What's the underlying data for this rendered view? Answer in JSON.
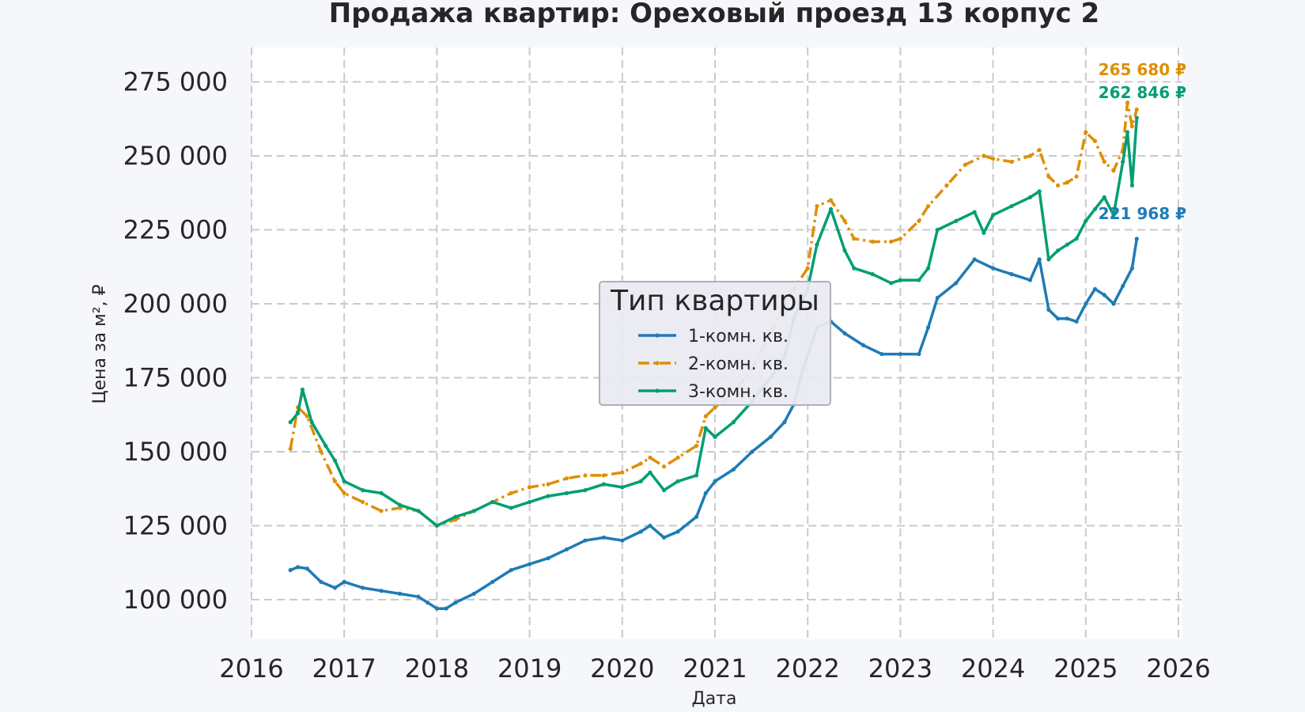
{
  "chart_data": {
    "type": "line",
    "title": "Продажа квартир: Ореховый проезд 13 корпус 2",
    "xlabel": "Дата",
    "ylabel": "Цена за м², ₽",
    "xlim": [
      2016,
      2026
    ],
    "ylim": [
      88000,
      287000
    ],
    "x_ticks": [
      2016,
      2017,
      2018,
      2019,
      2020,
      2021,
      2022,
      2023,
      2024,
      2025,
      2026
    ],
    "y_ticks": [
      100000,
      125000,
      150000,
      175000,
      200000,
      225000,
      250000,
      275000
    ],
    "y_tick_labels": [
      "100 000",
      "125 000",
      "150 000",
      "175 000",
      "200 000",
      "225 000",
      "250 000",
      "275 000"
    ],
    "grid": true,
    "legend": {
      "title": "Тип квартиры",
      "placement": "center"
    },
    "series": [
      {
        "name": "1-комн. кв.",
        "color": "#1f7bb5",
        "style": "solid-markers",
        "end_label": "221 968 ₽",
        "x": [
          2016.42,
          2016.5,
          2016.6,
          2016.75,
          2016.9,
          2017.0,
          2017.2,
          2017.4,
          2017.6,
          2017.8,
          2017.9,
          2018.0,
          2018.1,
          2018.2,
          2018.4,
          2018.6,
          2018.8,
          2019.0,
          2019.2,
          2019.4,
          2019.6,
          2019.8,
          2020.0,
          2020.2,
          2020.3,
          2020.45,
          2020.6,
          2020.8,
          2020.9,
          2021.0,
          2021.2,
          2021.4,
          2021.6,
          2021.75,
          2021.85,
          2021.95,
          2022.1,
          2022.25,
          2022.4,
          2022.6,
          2022.8,
          2023.0,
          2023.2,
          2023.3,
          2023.4,
          2023.6,
          2023.8,
          2024.0,
          2024.2,
          2024.4,
          2024.5,
          2024.6,
          2024.7,
          2024.8,
          2024.9,
          2025.0,
          2025.1,
          2025.2,
          2025.3,
          2025.4,
          2025.5,
          2025.55
        ],
        "y": [
          110000,
          111000,
          110500,
          106000,
          104000,
          106000,
          104000,
          103000,
          102000,
          101000,
          99000,
          97000,
          97000,
          99000,
          102000,
          106000,
          110000,
          112000,
          114000,
          117000,
          120000,
          121000,
          120000,
          123000,
          125000,
          121000,
          123000,
          128000,
          136000,
          140000,
          144000,
          150000,
          155000,
          160000,
          166000,
          178000,
          192000,
          194000,
          190000,
          186000,
          183000,
          183000,
          183000,
          192000,
          202000,
          207000,
          215000,
          212000,
          210000,
          208000,
          215000,
          198000,
          195000,
          195000,
          194000,
          200000,
          205000,
          203000,
          200000,
          206000,
          212000,
          221968
        ]
      },
      {
        "name": "2-комн. кв.",
        "color": "#de8f05",
        "style": "dashdot-markers",
        "end_label": "265 680 ₽",
        "x": [
          2016.42,
          2016.5,
          2016.6,
          2016.75,
          2016.9,
          2017.0,
          2017.2,
          2017.4,
          2017.6,
          2017.8,
          2018.0,
          2018.2,
          2018.4,
          2018.6,
          2018.8,
          2019.0,
          2019.2,
          2019.4,
          2019.6,
          2019.8,
          2020.0,
          2020.2,
          2020.3,
          2020.45,
          2020.6,
          2020.8,
          2020.9,
          2021.0,
          2021.2,
          2021.4,
          2021.6,
          2021.75,
          2021.85,
          2022.0,
          2022.1,
          2022.25,
          2022.4,
          2022.5,
          2022.7,
          2022.9,
          2023.0,
          2023.2,
          2023.3,
          2023.5,
          2023.7,
          2023.9,
          2024.0,
          2024.2,
          2024.4,
          2024.5,
          2024.6,
          2024.7,
          2024.8,
          2024.9,
          2025.0,
          2025.1,
          2025.2,
          2025.3,
          2025.4,
          2025.45,
          2025.5,
          2025.55
        ],
        "y": [
          151000,
          165000,
          162000,
          150000,
          140000,
          136000,
          133000,
          130000,
          131000,
          130000,
          125000,
          127000,
          130000,
          133000,
          136000,
          138000,
          139000,
          141000,
          142000,
          142000,
          143000,
          146000,
          148000,
          145000,
          148000,
          152000,
          162000,
          165000,
          170000,
          178000,
          190000,
          200000,
          205000,
          212000,
          233000,
          235000,
          228000,
          222000,
          221000,
          221000,
          222000,
          228000,
          233000,
          240000,
          247000,
          250000,
          249000,
          248000,
          250000,
          252000,
          243000,
          240000,
          241000,
          243000,
          258000,
          255000,
          248000,
          245000,
          252000,
          268000,
          260000,
          265680
        ]
      },
      {
        "name": "3-комн. кв.",
        "color": "#029e73",
        "style": "solid-markers",
        "end_label": "262 846 ₽",
        "x": [
          2016.42,
          2016.5,
          2016.55,
          2016.65,
          2016.8,
          2016.9,
          2017.0,
          2017.2,
          2017.4,
          2017.6,
          2017.8,
          2018.0,
          2018.2,
          2018.4,
          2018.6,
          2018.8,
          2019.0,
          2019.2,
          2019.4,
          2019.6,
          2019.8,
          2020.0,
          2020.2,
          2020.3,
          2020.45,
          2020.6,
          2020.8,
          2020.9,
          2021.0,
          2021.2,
          2021.4,
          2021.6,
          2021.75,
          2021.85,
          2022.0,
          2022.1,
          2022.25,
          2022.4,
          2022.5,
          2022.7,
          2022.9,
          2023.0,
          2023.2,
          2023.3,
          2023.4,
          2023.6,
          2023.8,
          2023.9,
          2024.0,
          2024.2,
          2024.4,
          2024.5,
          2024.6,
          2024.7,
          2024.8,
          2024.9,
          2025.0,
          2025.1,
          2025.2,
          2025.3,
          2025.4,
          2025.45,
          2025.5,
          2025.55
        ],
        "y": [
          160000,
          163000,
          171000,
          160000,
          152000,
          147000,
          140000,
          137000,
          136000,
          132000,
          130000,
          125000,
          128000,
          130000,
          133000,
          131000,
          133000,
          135000,
          136000,
          137000,
          139000,
          138000,
          140000,
          143000,
          137000,
          140000,
          142000,
          158000,
          155000,
          160000,
          167000,
          175000,
          182000,
          195000,
          205000,
          220000,
          232000,
          218000,
          212000,
          210000,
          207000,
          208000,
          208000,
          212000,
          225000,
          228000,
          231000,
          224000,
          230000,
          233000,
          236000,
          238000,
          215000,
          218000,
          220000,
          222000,
          228000,
          232000,
          236000,
          230000,
          248000,
          258000,
          240000,
          262846
        ]
      }
    ]
  }
}
